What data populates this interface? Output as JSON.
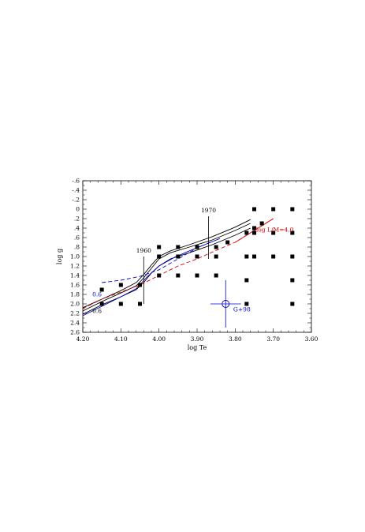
{
  "chart_data": {
    "type": "scatter",
    "title": "",
    "xlabel": "log Te",
    "ylabel": "log g",
    "xlim": [
      4.2,
      3.6
    ],
    "ylim": [
      -0.6,
      2.6
    ],
    "x_reversed": true,
    "y_reversed": true,
    "grid": false,
    "x_ticks": [
      4.2,
      4.1,
      4.0,
      3.9,
      3.8,
      3.7,
      3.6
    ],
    "x_tick_labels": [
      "4.20",
      "4.10",
      "4.00",
      "3.90",
      "3.80",
      "3.70",
      "3.60"
    ],
    "y_ticks": [
      -0.6,
      -0.4,
      -0.2,
      0,
      0.2,
      0.4,
      0.6,
      0.8,
      1.0,
      1.2,
      1.4,
      1.6,
      1.8,
      2.0,
      2.2,
      2.4,
      2.6
    ],
    "y_tick_labels": [
      "-.6",
      "-.4",
      "-.2",
      "0",
      ".2",
      ".4",
      ".6",
      ".8",
      "1.0",
      "1.2",
      "1.4",
      "1.6",
      "1.8",
      "2.0",
      "2.2",
      "2.4",
      "2.6"
    ],
    "model_grid_points": [
      {
        "x": 4.15,
        "y": 1.7
      },
      {
        "x": 4.15,
        "y": 2.0
      },
      {
        "x": 4.1,
        "y": 1.6
      },
      {
        "x": 4.1,
        "y": 2.0
      },
      {
        "x": 4.05,
        "y": 1.6
      },
      {
        "x": 4.05,
        "y": 2.0
      },
      {
        "x": 4.0,
        "y": 0.8
      },
      {
        "x": 4.0,
        "y": 1.0
      },
      {
        "x": 4.0,
        "y": 1.4
      },
      {
        "x": 3.95,
        "y": 0.8
      },
      {
        "x": 3.95,
        "y": 1.0
      },
      {
        "x": 3.95,
        "y": 1.4
      },
      {
        "x": 3.9,
        "y": 0.8
      },
      {
        "x": 3.9,
        "y": 1.0
      },
      {
        "x": 3.9,
        "y": 1.4
      },
      {
        "x": 3.85,
        "y": 0.8
      },
      {
        "x": 3.85,
        "y": 1.0
      },
      {
        "x": 3.85,
        "y": 1.4
      },
      {
        "x": 3.82,
        "y": 0.7
      },
      {
        "x": 3.77,
        "y": 0.5
      },
      {
        "x": 3.77,
        "y": 1.0
      },
      {
        "x": 3.77,
        "y": 1.5
      },
      {
        "x": 3.77,
        "y": 2.0
      },
      {
        "x": 3.75,
        "y": 0.0
      },
      {
        "x": 3.75,
        "y": 0.4
      },
      {
        "x": 3.75,
        "y": 0.5
      },
      {
        "x": 3.75,
        "y": 1.0
      },
      {
        "x": 3.73,
        "y": 0.3
      },
      {
        "x": 3.7,
        "y": 0.0
      },
      {
        "x": 3.7,
        "y": 0.5
      },
      {
        "x": 3.7,
        "y": 1.0
      },
      {
        "x": 3.65,
        "y": 0.0
      },
      {
        "x": 3.65,
        "y": 0.5
      },
      {
        "x": 3.65,
        "y": 1.0
      },
      {
        "x": 3.65,
        "y": 1.5
      },
      {
        "x": 3.65,
        "y": 2.0
      }
    ],
    "series": [
      {
        "color": "#000000",
        "style": "solid",
        "x": [
          4.2,
          4.15,
          4.1,
          4.06,
          4.04,
          4.02,
          4.0,
          3.97,
          3.92,
          3.86,
          3.8,
          3.76
        ],
        "y": [
          2.15,
          1.95,
          1.77,
          1.62,
          1.45,
          1.25,
          1.05,
          0.92,
          0.8,
          0.65,
          0.45,
          0.3
        ]
      },
      {
        "color": "#000000",
        "style": "solid",
        "x": [
          4.2,
          4.15,
          4.1,
          4.06,
          4.04,
          4.02,
          4.0,
          3.97,
          3.92,
          3.86,
          3.8,
          3.76
        ],
        "y": [
          2.22,
          2.02,
          1.85,
          1.7,
          1.55,
          1.35,
          1.2,
          1.05,
          0.92,
          0.75,
          0.55,
          0.4
        ]
      },
      {
        "color": "#000000",
        "style": "solid",
        "x": [
          4.2,
          4.15,
          4.1,
          4.06,
          4.04,
          4.02,
          4.0,
          3.97,
          3.92,
          3.86,
          3.8,
          3.76
        ],
        "y": [
          2.08,
          1.9,
          1.72,
          1.55,
          1.38,
          1.18,
          1.0,
          0.88,
          0.75,
          0.58,
          0.38,
          0.22
        ]
      },
      {
        "color": "#0000cc",
        "style": "solid",
        "x": [
          4.2,
          4.15,
          4.1,
          4.06,
          4.03,
          4.0,
          3.96,
          3.92,
          3.88,
          3.84
        ],
        "y": [
          2.25,
          2.05,
          1.85,
          1.68,
          1.42,
          1.2,
          1.02,
          0.88,
          0.75,
          0.62
        ]
      },
      {
        "color": "#0000cc",
        "style": "dashed",
        "x": [
          4.15,
          4.1,
          4.05,
          4.0,
          3.95,
          3.9,
          3.86
        ],
        "y": [
          1.55,
          1.5,
          1.42,
          1.28,
          1.05,
          0.82,
          0.68
        ]
      },
      {
        "color": "#dd0000",
        "style": "dashed",
        "x": [
          4.2,
          4.15,
          4.1,
          4.05,
          4.0,
          3.95,
          3.9,
          3.85,
          3.8,
          3.75,
          3.7
        ],
        "y": [
          2.1,
          1.9,
          1.75,
          1.6,
          1.4,
          1.2,
          1.05,
          0.87,
          0.7,
          0.45,
          0.2
        ]
      },
      {
        "color": "#dd0000",
        "style": "solid",
        "x": [
          3.8,
          3.75,
          3.7
        ],
        "y": [
          0.7,
          0.45,
          0.2
        ]
      }
    ],
    "reference_lines": [
      {
        "label": "1960",
        "x": 4.04,
        "y_from": 2.0,
        "y_to": 1.0,
        "label_y": 0.95
      },
      {
        "label": "1970",
        "x": 3.87,
        "y_from": 1.05,
        "y_to": 0.15,
        "label_y": 0.1
      }
    ],
    "annotations": [
      {
        "text": "0.6",
        "x": 4.175,
        "y": 2.15,
        "color": "#000000"
      },
      {
        "text": "0.6",
        "x": 4.175,
        "y": 1.8,
        "color": "#0000cc"
      },
      {
        "text": "log L/M=4.0",
        "x": 3.745,
        "y": 0.43,
        "color": "#dd0000"
      },
      {
        "text": "G+98",
        "x": 3.805,
        "y": 2.12,
        "color": "#0000cc"
      }
    ],
    "error_point": {
      "label": "G+98",
      "x": 3.825,
      "y": 2.0,
      "x_err": 0.04,
      "y_err": [
        0.5,
        0.5
      ],
      "color": "#0000cc"
    }
  }
}
